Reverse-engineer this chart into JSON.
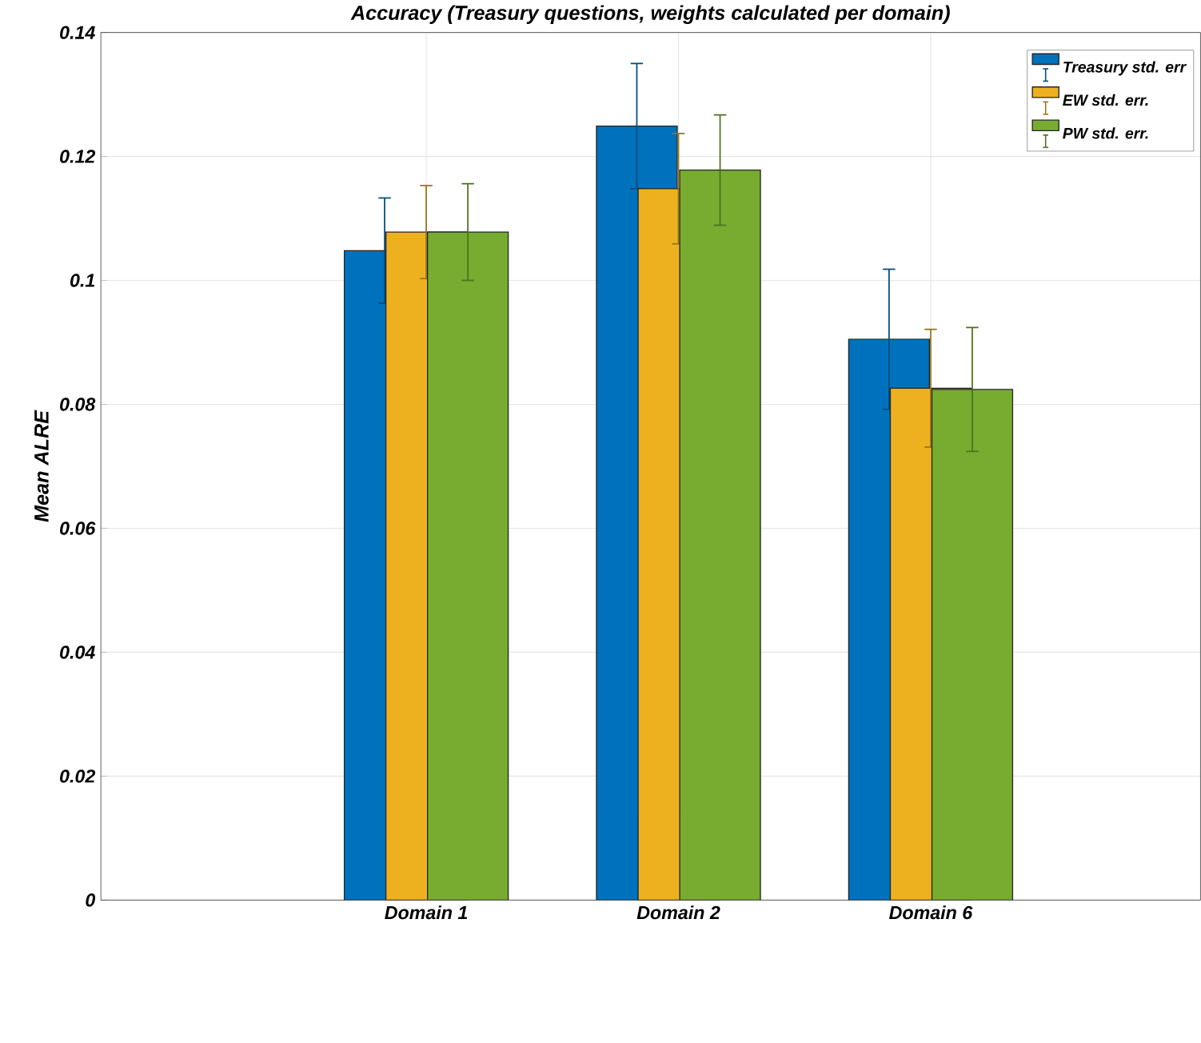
{
  "chart_data": {
    "type": "bar",
    "title": "Accuracy (Treasury questions, weights calculated per domain)",
    "ylabel": "Mean ALRE",
    "categories": [
      "Domain 1",
      "Domain 2",
      "Domain 6"
    ],
    "series": [
      {
        "name": "Treasury std. err",
        "color": "#0072bd",
        "values": [
          0.1048,
          0.1249,
          0.0905
        ],
        "errors": [
          0.0085,
          0.0101,
          0.0113
        ]
      },
      {
        "name": "EW std. err.",
        "color": "#edb120",
        "values": [
          0.1078,
          0.1148,
          0.0826
        ],
        "errors": [
          0.0075,
          0.0089,
          0.0095
        ]
      },
      {
        "name": "PW std. err.",
        "color": "#77ac30",
        "values": [
          0.1078,
          0.1178,
          0.0824
        ],
        "errors": [
          0.0078,
          0.0089,
          0.01
        ]
      }
    ],
    "ylim": [
      0,
      0.14
    ],
    "yticks": [
      0,
      0.02,
      0.04,
      0.06,
      0.08,
      0.1,
      0.12,
      0.14
    ],
    "grid": true,
    "legend": "top right"
  }
}
